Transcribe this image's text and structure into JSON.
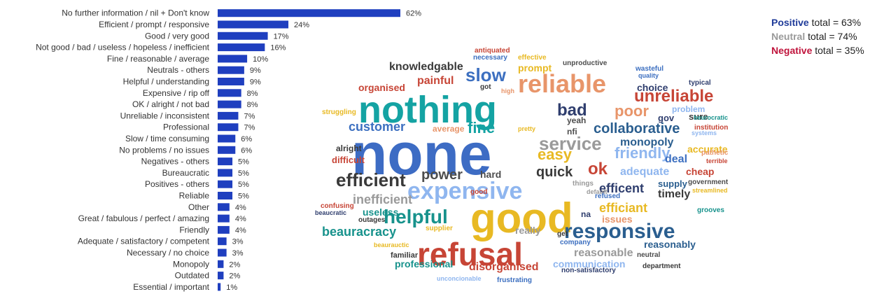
{
  "chart_data": [
    {
      "type": "bar",
      "orientation": "horizontal",
      "categories": [
        "No further information / nil + Don't know",
        "Efficient / prompt / responsive",
        "Good / very good",
        "Not good / bad / useless / hopeless / inefficient",
        "Fine / reasonable / average",
        "Neutrals - others",
        "Helpful / understanding",
        "Expensive / rip off",
        "OK / alright / not bad",
        "Unreliable / inconsistent",
        "Professional",
        "Slow / time consuming",
        "No problems / no issues",
        "Negatives - others",
        "Bureaucratic",
        "Positives - others",
        "Reliable",
        "Other",
        "Great / fabulous / perfect / amazing",
        "Friendly",
        "Adequate / satisfactory / competent",
        "Necessary / no choice",
        "Monopoly",
        "Outdated",
        "Essential / important"
      ],
      "values": [
        62,
        24,
        17,
        16,
        10,
        9,
        9,
        8,
        8,
        7,
        7,
        6,
        6,
        5,
        5,
        5,
        5,
        4,
        4,
        4,
        3,
        3,
        2,
        2,
        1
      ],
      "value_labels": [
        "62%",
        "24%",
        "17%",
        "16%",
        "10%",
        "9%",
        "9%",
        "8%",
        "8%",
        "7%",
        "7%",
        "6%",
        "6%",
        "5%",
        "5%",
        "5%",
        "5%",
        "4%",
        "4%",
        "4%",
        "3%",
        "3%",
        "2%",
        "2%",
        "1%"
      ],
      "xlim": [
        0,
        100
      ],
      "bar_color": "#1f3fbf",
      "grid": false
    },
    {
      "type": "word_cloud",
      "words": [
        {
          "text": "none",
          "color": "#3d6cc4"
        },
        {
          "text": "nothing",
          "color": "#14a3a3"
        },
        {
          "text": "good",
          "color": "#e8b923"
        },
        {
          "text": "refusal",
          "color": "#c74536"
        },
        {
          "text": "expensive",
          "color": "#8fb6ef"
        },
        {
          "text": "reliable",
          "color": "#e8956a"
        },
        {
          "text": "responsive",
          "color": "#2a5e8f"
        },
        {
          "text": "helpful",
          "color": "#17928c"
        },
        {
          "text": "service",
          "color": "#9a9a9a"
        },
        {
          "text": "efficient",
          "color": "#3a3a3a"
        },
        {
          "text": "slow",
          "color": "#3c6fc0"
        },
        {
          "text": "bad",
          "color": "#2f3e6e"
        },
        {
          "text": "unreliable",
          "color": "#c74536"
        },
        {
          "text": "poor",
          "color": "#e8956a"
        },
        {
          "text": "fine",
          "color": "#14a3a3"
        },
        {
          "text": "collaborative",
          "color": "#2a5e8f"
        },
        {
          "text": "easy",
          "color": "#e8b923"
        },
        {
          "text": "friendly",
          "color": "#8fb6ef"
        },
        {
          "text": "ok",
          "color": "#c74536"
        },
        {
          "text": "quick",
          "color": "#3a3a3a"
        },
        {
          "text": "power",
          "color": "#4d4d4d"
        },
        {
          "text": "beauracracy",
          "color": "#17928c"
        },
        {
          "text": "customer",
          "color": "#3c6fc0"
        },
        {
          "text": "knowledgable",
          "color": "#3a3a3a"
        },
        {
          "text": "painful",
          "color": "#c74536"
        },
        {
          "text": "inefficient",
          "color": "#9a9a9a"
        },
        {
          "text": "disorganised",
          "color": "#c74536"
        },
        {
          "text": "reasonable",
          "color": "#9a9a9a"
        },
        {
          "text": "efficent",
          "color": "#2f3e6e"
        },
        {
          "text": "efficiant",
          "color": "#e8b923"
        },
        {
          "text": "adequate",
          "color": "#8fb6ef"
        },
        {
          "text": "monopoly",
          "color": "#2a5e8f"
        },
        {
          "text": "timely",
          "color": "#3a3a3a"
        },
        {
          "text": "deal",
          "color": "#3c6fc0"
        },
        {
          "text": "cheap",
          "color": "#c74536"
        },
        {
          "text": "issues",
          "color": "#e8956a"
        },
        {
          "text": "useless",
          "color": "#17928c"
        },
        {
          "text": "professional",
          "color": "#17928c"
        },
        {
          "text": "communication",
          "color": "#8fb6ef"
        },
        {
          "text": "reasonably",
          "color": "#2a5e8f"
        },
        {
          "text": "organised",
          "color": "#c74536"
        },
        {
          "text": "choice",
          "color": "#2f3e6e"
        },
        {
          "text": "accurate",
          "color": "#e8b923"
        },
        {
          "text": "supply",
          "color": "#2a5e8f"
        },
        {
          "text": "difficult",
          "color": "#c74536"
        },
        {
          "text": "alright",
          "color": "#3a3a3a"
        },
        {
          "text": "hard",
          "color": "#4d4d4d"
        },
        {
          "text": "prompt",
          "color": "#e8b923"
        },
        {
          "text": "yeah",
          "color": "#4d4d4d"
        },
        {
          "text": "sure",
          "color": "#3a3a3a"
        },
        {
          "text": "gov",
          "color": "#2f3e6e"
        },
        {
          "text": "nfi",
          "color": "#4d4d4d"
        },
        {
          "text": "problem",
          "color": "#8fb6ef"
        },
        {
          "text": "average",
          "color": "#e8956a"
        },
        {
          "text": "really",
          "color": "#9a9a9a"
        },
        {
          "text": "na",
          "color": "#2f3e6e"
        },
        {
          "text": "familiar",
          "color": "#3a3a3a"
        },
        {
          "text": "frustrating",
          "color": "#3c6fc0"
        },
        {
          "text": "unproductive",
          "color": "#4d4d4d"
        },
        {
          "text": "antiquated",
          "color": "#c74536"
        },
        {
          "text": "necessary",
          "color": "#3c6fc0"
        },
        {
          "text": "effective",
          "color": "#e8b923"
        },
        {
          "text": "wasteful",
          "color": "#3c6fc0"
        },
        {
          "text": "quality",
          "color": "#3c6fc0"
        },
        {
          "text": "typical",
          "color": "#2f3e6e"
        },
        {
          "text": "beurocratic",
          "color": "#17928c"
        },
        {
          "text": "institution",
          "color": "#c74536"
        },
        {
          "text": "systems",
          "color": "#8fb6ef"
        },
        {
          "text": "pathetic",
          "color": "#e8956a"
        },
        {
          "text": "terrible",
          "color": "#c74536"
        },
        {
          "text": "government",
          "color": "#4d4d4d"
        },
        {
          "text": "streamlined",
          "color": "#e8b923"
        },
        {
          "text": "grooves",
          "color": "#17928c"
        },
        {
          "text": "neutral",
          "color": "#4d4d4d"
        },
        {
          "text": "department",
          "color": "#3a3a3a"
        },
        {
          "text": "non-satisfactory",
          "color": "#2f3e6e"
        },
        {
          "text": "company",
          "color": "#3c6fc0"
        },
        {
          "text": "things",
          "color": "#9a9a9a"
        },
        {
          "text": "default",
          "color": "#9a9a9a"
        },
        {
          "text": "refused",
          "color": "#3c6fc0"
        },
        {
          "text": "good",
          "color": "#c74536"
        },
        {
          "text": "confusing",
          "color": "#c74536"
        },
        {
          "text": "beaucratic",
          "color": "#2f3e6e"
        },
        {
          "text": "outages",
          "color": "#3a3a3a"
        },
        {
          "text": "supplier",
          "color": "#e8b923"
        },
        {
          "text": "beaurauctic",
          "color": "#e8b923"
        },
        {
          "text": "unconcionable",
          "color": "#8fb6ef"
        },
        {
          "text": "struggling",
          "color": "#e8b923"
        },
        {
          "text": "high",
          "color": "#e8956a"
        },
        {
          "text": "pretty",
          "color": "#e8b923"
        },
        {
          "text": "got",
          "color": "#3a3a3a"
        },
        {
          "text": "get",
          "color": "#3a3a3a"
        }
      ]
    }
  ],
  "totals": {
    "positive": {
      "label": "Positive",
      "text": " total = 63%",
      "color": "#1f3b99"
    },
    "neutral": {
      "label": "Neutral",
      "text": " total = 74%",
      "color": "#9a9a9a"
    },
    "negative": {
      "label": "Negative",
      "text": " total = 35%",
      "color": "#c0143c"
    }
  }
}
